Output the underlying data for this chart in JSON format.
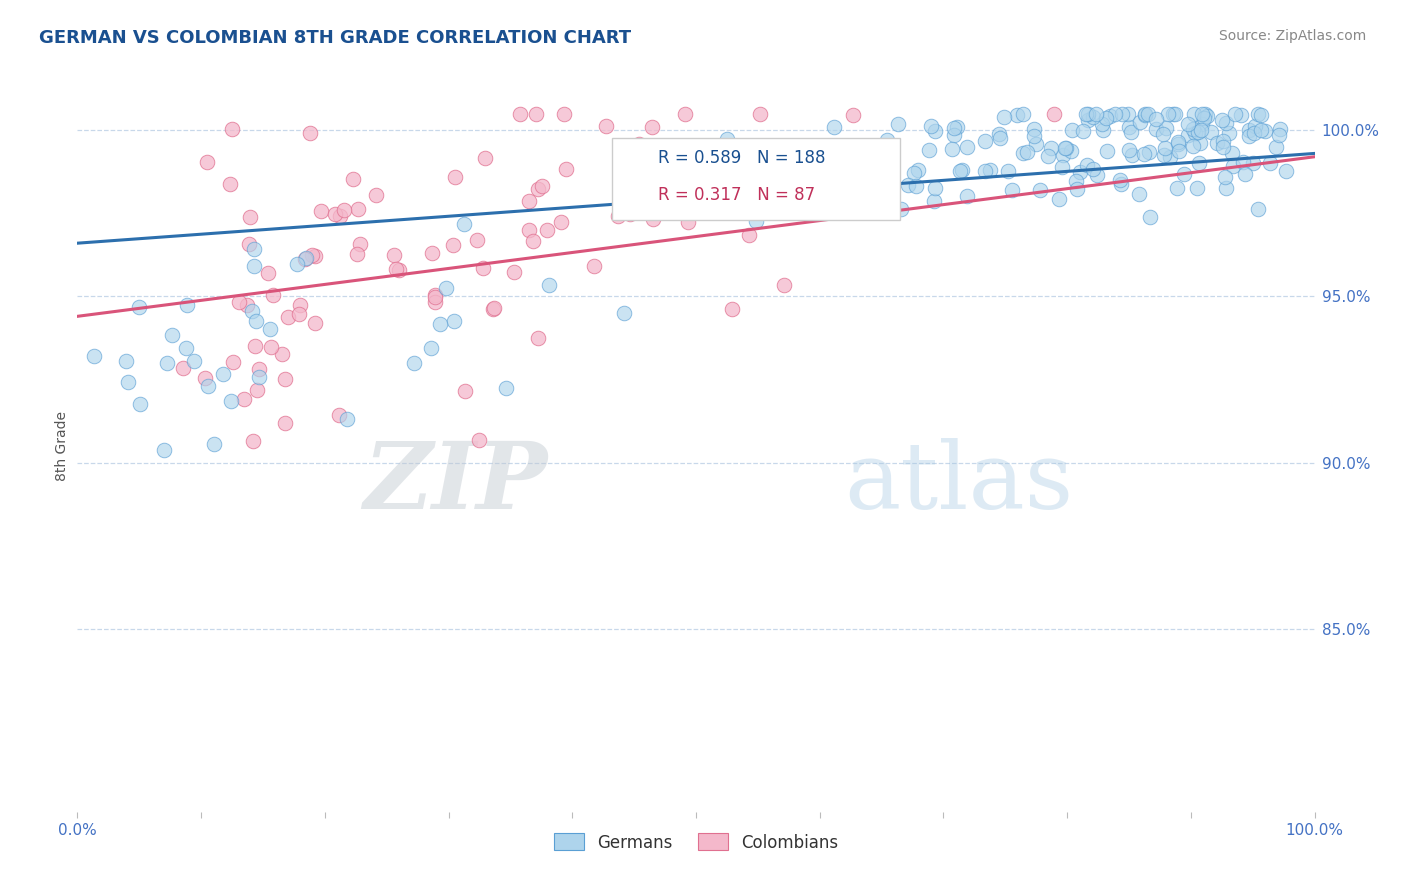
{
  "title": "GERMAN VS COLOMBIAN 8TH GRADE CORRELATION CHART",
  "source": "Source: ZipAtlas.com",
  "ylabel": "8th Grade",
  "y_ticks": [
    0.85,
    0.9,
    0.95,
    1.0
  ],
  "y_tick_labels": [
    "85.0%",
    "90.0%",
    "95.0%",
    "100.0%"
  ],
  "x_range": [
    0.0,
    1.0
  ],
  "y_range": [
    0.795,
    1.015
  ],
  "german_R": 0.589,
  "german_N": 188,
  "colombian_R": 0.317,
  "colombian_N": 87,
  "german_color": "#aed4ec",
  "colombian_color": "#f4b8cb",
  "german_edge_color": "#5a9fd4",
  "colombian_edge_color": "#e07090",
  "german_line_color": "#2c6fad",
  "colombian_line_color": "#d9547a",
  "watermark_zip": "ZIP",
  "watermark_atlas": "atlas",
  "background_color": "#ffffff",
  "grid_color": "#c8d8ea",
  "axis_tick_color": "#4472c4",
  "title_color": "#1a5090",
  "legend_text_color_german": "#1a5090",
  "legend_text_color_colombian": "#c0305a"
}
